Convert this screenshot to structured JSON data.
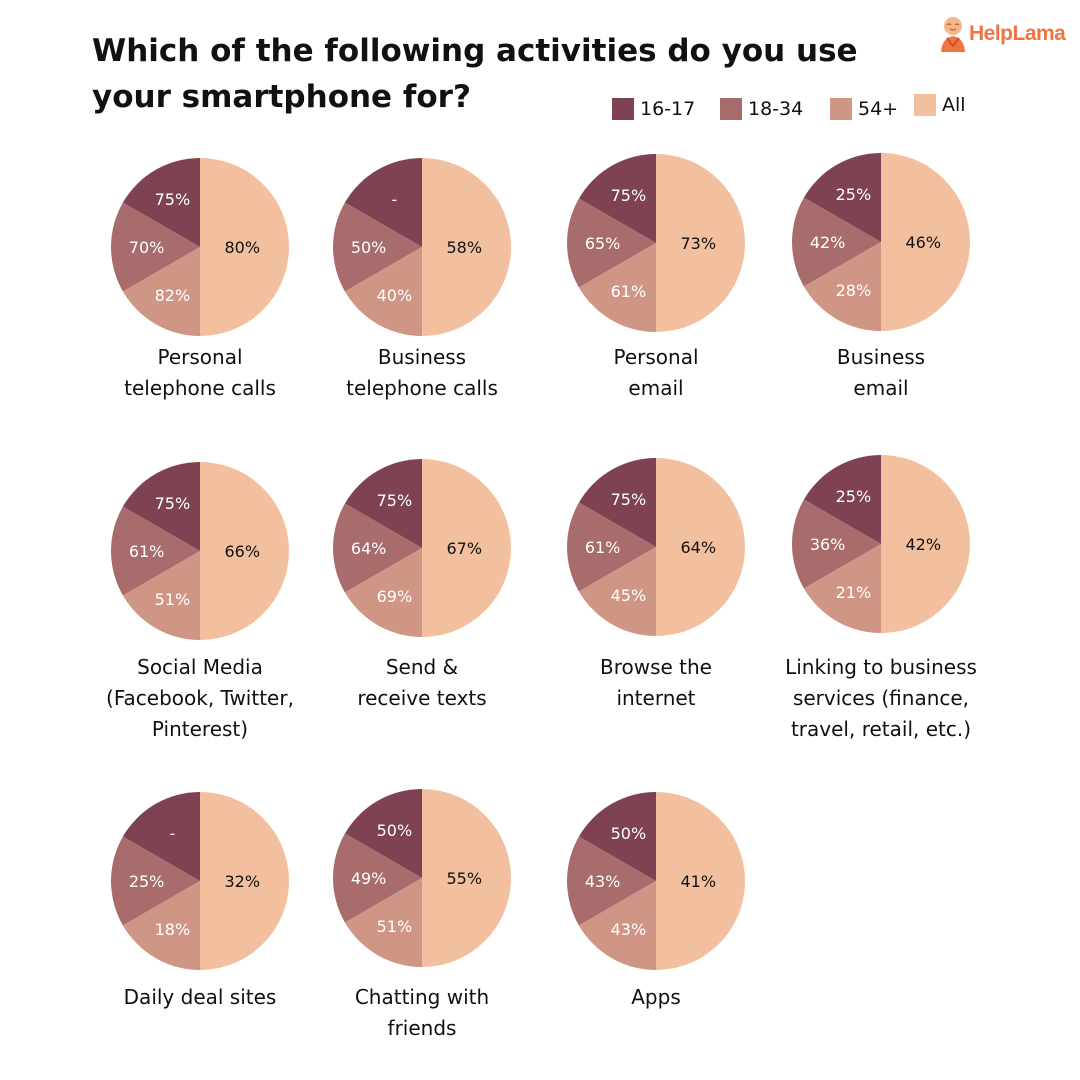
{
  "title": "Which of the following activities do you use your smartphone for?",
  "logo": {
    "text": "HelpLama",
    "brand_color": "#ef7443",
    "icon": "monk-mascot-icon"
  },
  "legend": [
    {
      "label": "16-17",
      "color": "#7e4252"
    },
    {
      "label": "18-34",
      "color": "#a86c6c"
    },
    {
      "label": "54+",
      "color": "#d09685"
    },
    {
      "label": "All",
      "color": "#f3c09f"
    }
  ],
  "chart_data": [
    {
      "type": "pie",
      "title": "Personal telephone calls",
      "label_lines": [
        "Personal",
        "telephone calls"
      ],
      "slice_labels": {
        "16-17": "75%",
        "18-34": "70%",
        "54+": "82%",
        "All": "80%"
      }
    },
    {
      "type": "pie",
      "title": "Business telephone calls",
      "label_lines": [
        "Business",
        "telephone calls"
      ],
      "slice_labels": {
        "16-17": "-",
        "18-34": "50%",
        "54+": "40%",
        "All": "58%"
      }
    },
    {
      "type": "pie",
      "title": "Personal email",
      "label_lines": [
        "Personal",
        "email"
      ],
      "slice_labels": {
        "16-17": "75%",
        "18-34": "65%",
        "54+": "61%",
        "All": "73%"
      }
    },
    {
      "type": "pie",
      "title": "Business email",
      "label_lines": [
        "Business",
        "email"
      ],
      "slice_labels": {
        "16-17": "25%",
        "18-34": "42%",
        "54+": "28%",
        "All": "46%"
      }
    },
    {
      "type": "pie",
      "title": "Social Media (Facebook, Twitter, Pinterest)",
      "label_lines": [
        "Social Media",
        "(Facebook, Twitter,",
        "Pinterest)"
      ],
      "slice_labels": {
        "16-17": "75%",
        "18-34": "61%",
        "54+": "51%",
        "All": "66%"
      }
    },
    {
      "type": "pie",
      "title": "Send & receive texts",
      "label_lines": [
        "Send &",
        "receive texts"
      ],
      "slice_labels": {
        "16-17": "75%",
        "18-34": "64%",
        "54+": "69%",
        "All": "67%"
      }
    },
    {
      "type": "pie",
      "title": "Browse the internet",
      "label_lines": [
        "Browse the",
        "internet"
      ],
      "slice_labels": {
        "16-17": "75%",
        "18-34": "61%",
        "54+": "45%",
        "All": "64%"
      }
    },
    {
      "type": "pie",
      "title": "Linking to business services (finance, travel, retail, etc.)",
      "label_lines": [
        "Linking to business",
        "services (finance,",
        "travel, retail, etc.)"
      ],
      "slice_labels": {
        "16-17": "25%",
        "18-34": "36%",
        "54+": "21%",
        "All": "42%"
      }
    },
    {
      "type": "pie",
      "title": "Daily deal sites",
      "label_lines": [
        "Daily deal sites"
      ],
      "slice_labels": {
        "16-17": "-",
        "18-34": "25%",
        "54+": "18%",
        "All": "32%"
      }
    },
    {
      "type": "pie",
      "title": "Chatting with friends",
      "label_lines": [
        "Chatting with",
        "friends"
      ],
      "slice_labels": {
        "16-17": "50%",
        "18-34": "49%",
        "54+": "51%",
        "All": "55%"
      }
    },
    {
      "type": "pie",
      "title": "Apps",
      "label_lines": [
        "Apps"
      ],
      "slice_labels": {
        "16-17": "50%",
        "18-34": "43%",
        "54+": "43%",
        "All": "41%"
      }
    }
  ]
}
